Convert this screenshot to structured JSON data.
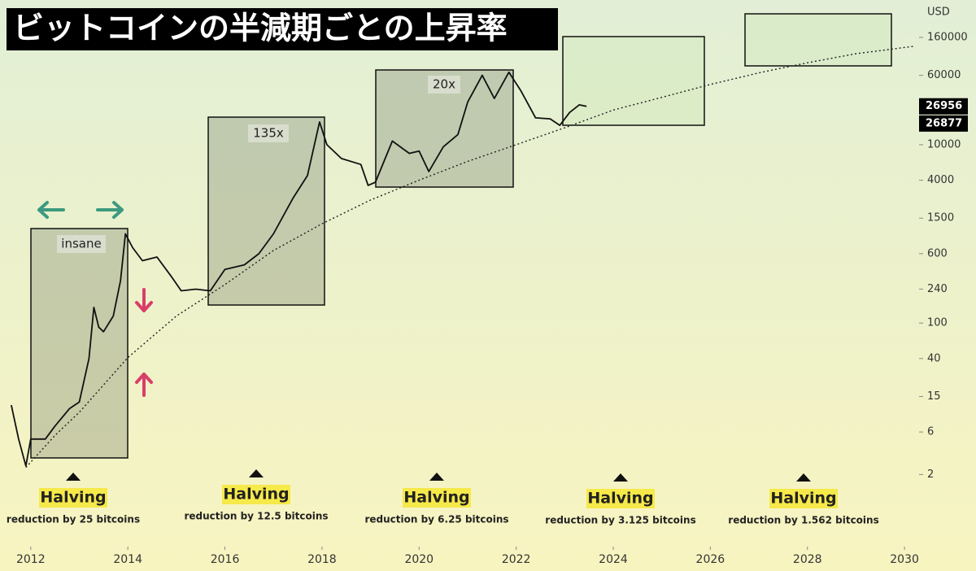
{
  "chart_data": {
    "type": "line",
    "title": "ビットコインの半減期ごとの上昇率",
    "y_label": "USD",
    "log_y": true,
    "xlim": [
      2011.4,
      2030.3
    ],
    "ylim": [
      0.4,
      420000
    ],
    "xticks": [
      2012,
      2014,
      2016,
      2018,
      2020,
      2022,
      2024,
      2026,
      2028,
      2030
    ],
    "yticks": [
      2,
      6,
      15,
      40,
      100,
      240,
      600,
      1500,
      4000,
      10000,
      60000,
      160000
    ],
    "series": [
      {
        "color": "#111111",
        "style": "solid",
        "x": [
          2011.6,
          2011.75,
          2011.9,
          2012.0,
          2012.3,
          2012.5,
          2012.8,
          2013.0,
          2013.2,
          2013.3,
          2013.4,
          2013.5,
          2013.7,
          2013.85,
          2013.95,
          2014.1,
          2014.3,
          2014.6,
          2014.9,
          2015.1,
          2015.4,
          2015.7,
          2016.0,
          2016.4,
          2016.7,
          2017.0,
          2017.4,
          2017.7,
          2017.95,
          2018.1,
          2018.4,
          2018.8,
          2018.95,
          2019.1,
          2019.45,
          2019.8,
          2020.0,
          2020.2,
          2020.5,
          2020.8,
          2021.0,
          2021.3,
          2021.55,
          2021.85,
          2022.1,
          2022.4,
          2022.7,
          2022.9,
          2023.1,
          2023.3,
          2023.45
        ],
        "values": [
          12,
          5,
          2.5,
          5,
          5,
          7,
          11,
          13,
          40,
          150,
          90,
          80,
          120,
          300,
          1000,
          700,
          500,
          550,
          330,
          230,
          240,
          230,
          400,
          450,
          600,
          1000,
          2500,
          4500,
          18000,
          10000,
          7000,
          6000,
          3500,
          3800,
          11000,
          8000,
          8500,
          5000,
          9500,
          13000,
          30000,
          60000,
          33000,
          65000,
          40000,
          20000,
          19500,
          16500,
          23000,
          28000,
          26956
        ]
      },
      {
        "color": "#222222",
        "style": "dotted",
        "x": [
          2011.9,
          2012.5,
          2013,
          2014,
          2015,
          2016,
          2017,
          2018,
          2019,
          2020,
          2021,
          2022,
          2023,
          2024,
          2025,
          2026,
          2027,
          2028,
          2029,
          2030.2
        ],
        "values": [
          2.4,
          5.5,
          10,
          41,
          120,
          270,
          650,
          1300,
          2400,
          4000,
          6500,
          10000,
          15500,
          24500,
          34000,
          47500,
          64000,
          83000,
          105000,
          127000
        ]
      }
    ],
    "price_labels": [
      26956,
      26877
    ],
    "boxes": [
      "insane",
      "135x",
      "20x"
    ],
    "halvings": [
      {
        "label": "Halving",
        "note": "reduction by 25 bitcoins"
      },
      {
        "label": "Halving",
        "note": "reduction by 12.5 bitcoins"
      },
      {
        "label": "Halving",
        "note": "reduction by 6.25 bitcoins"
      },
      {
        "label": "Halving",
        "note": "reduction by 3.125 bitcoins"
      },
      {
        "label": "Halving",
        "note": "reduction by 1.562 bitcoins"
      }
    ]
  }
}
